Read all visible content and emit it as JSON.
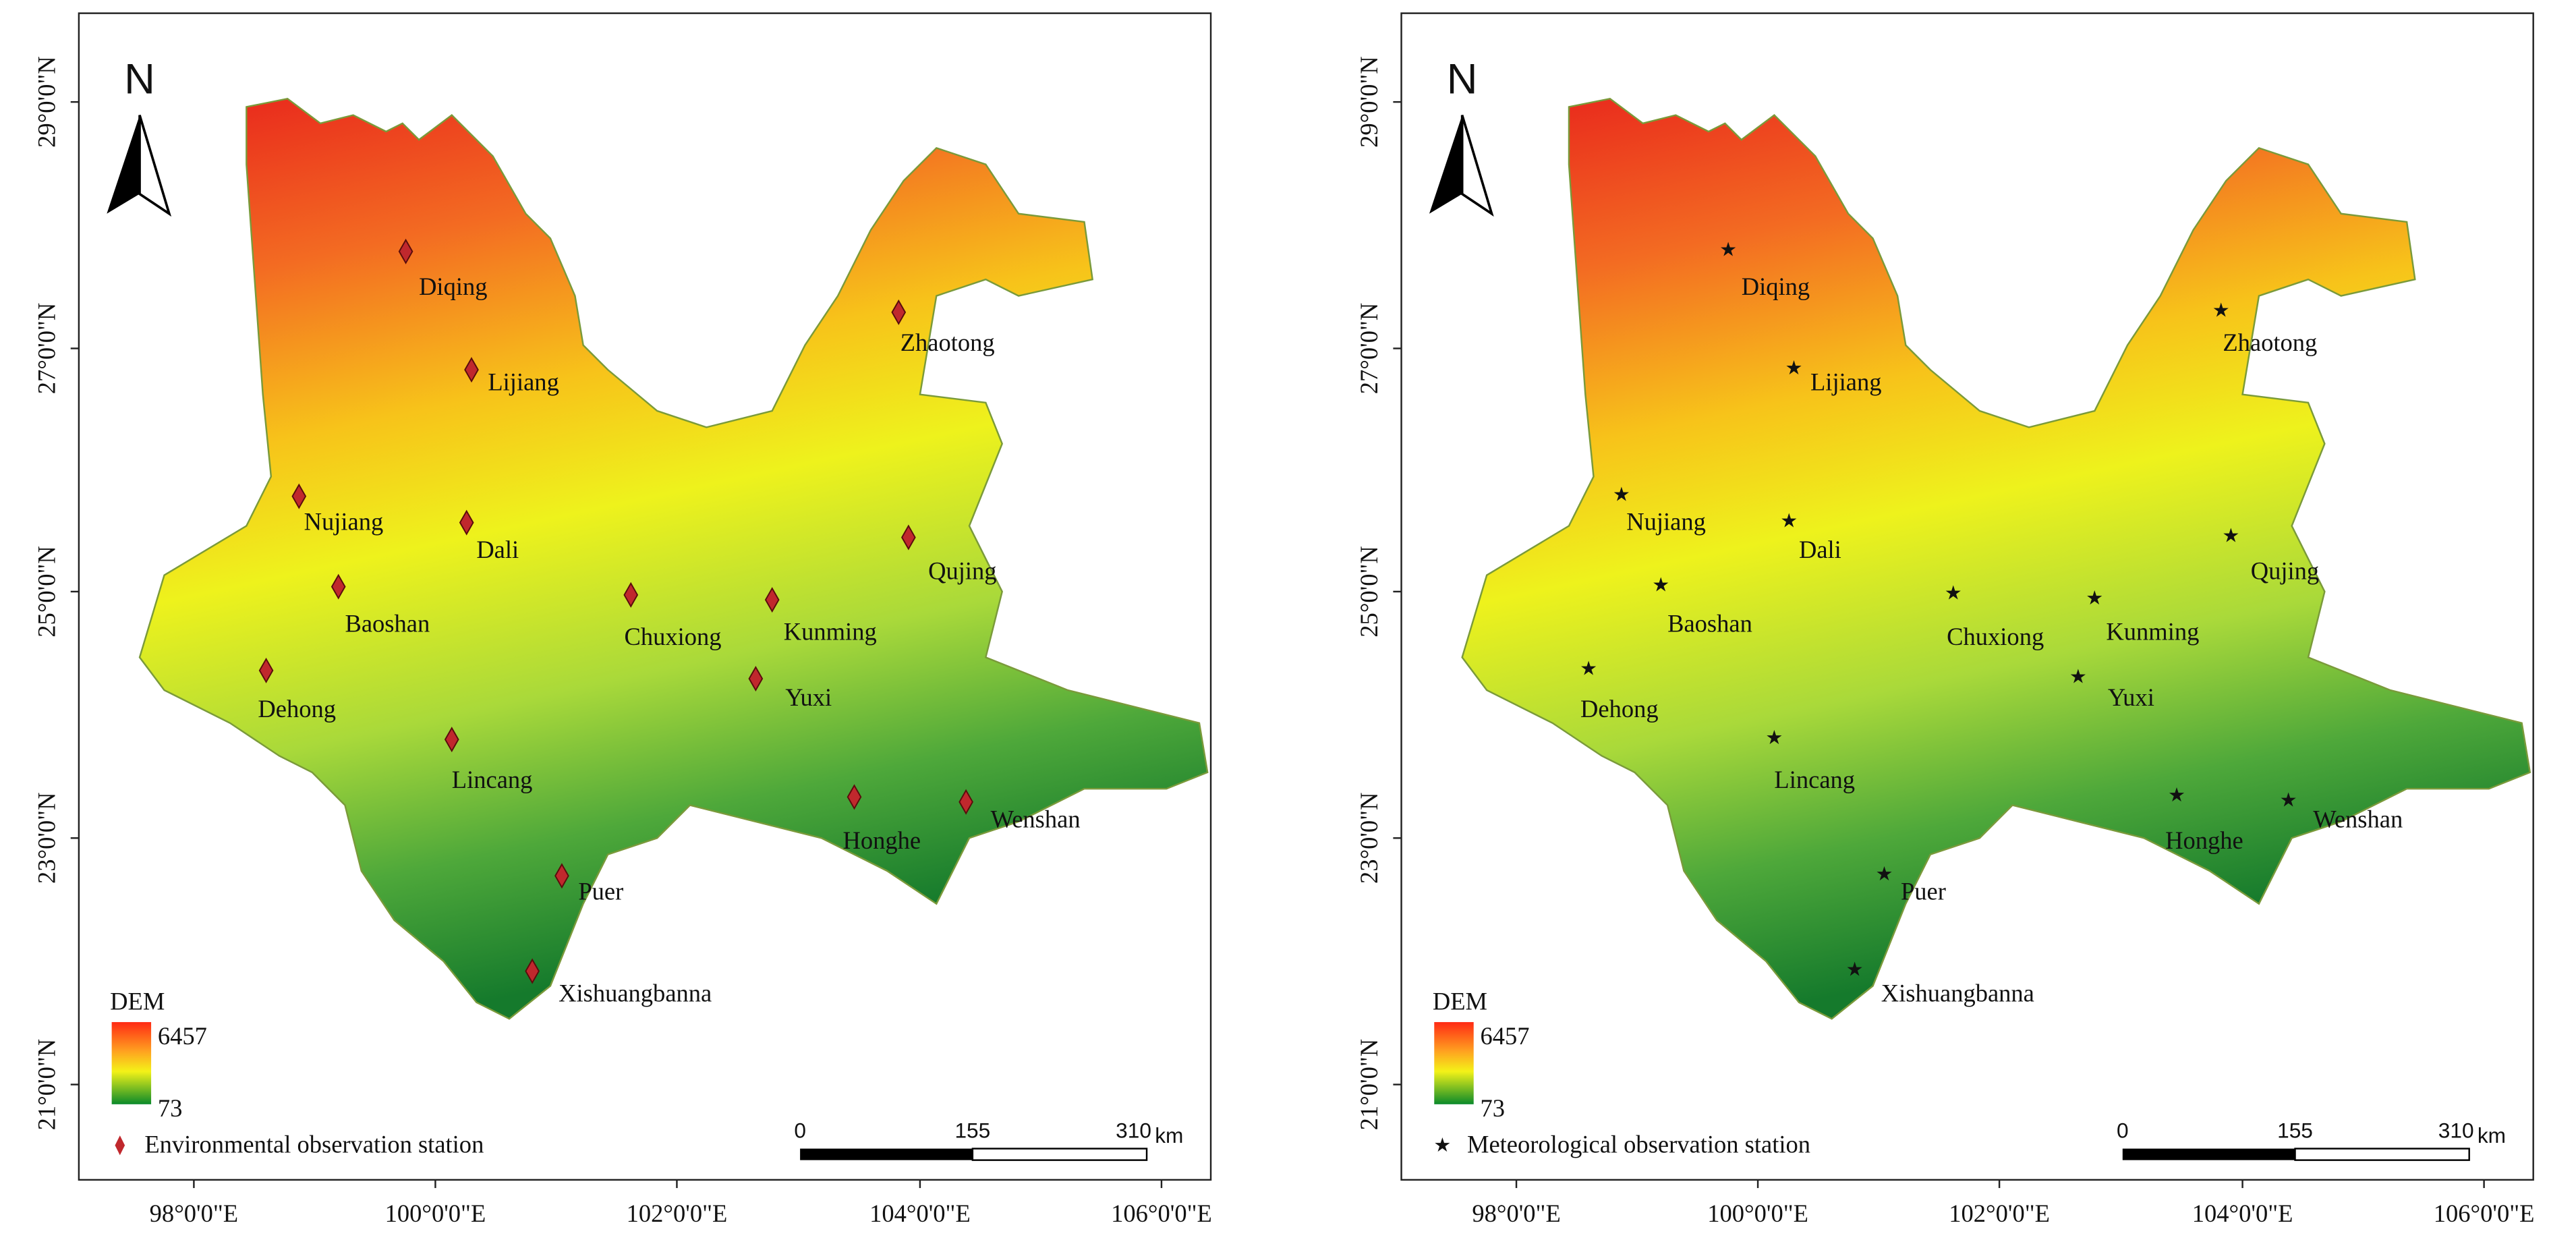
{
  "maps": [
    {
      "north": "N",
      "lat_labels": [
        "29°0'0\"N",
        "27°0'0\"N",
        "25°0'0\"N",
        "23°0'0\"N",
        "21°0'0\"N"
      ],
      "lon_labels": [
        "98°0'0\"E",
        "100°0'0\"E",
        "102°0'0\"E",
        "104°0'0\"E",
        "106°0'0\"E"
      ],
      "dem_legend": {
        "title": "DEM",
        "max": "6457",
        "min": "73"
      },
      "station_legend": "Environmental observation station",
      "scale_bar": {
        "ticks": [
          "0",
          "155",
          "310"
        ],
        "unit": "km"
      },
      "stations": [
        "Diqing",
        "Lijiang",
        "Nujiang",
        "Dali",
        "Baoshan",
        "Chuxiong",
        "Kunming",
        "Qujing",
        "Zhaotong",
        "Dehong",
        "Yuxi",
        "Lincang",
        "Honghe",
        "Wenshan",
        "Puer",
        "Xishuangbanna"
      ]
    },
    {
      "north": "N",
      "lat_labels": [
        "29°0'0\"N",
        "27°0'0\"N",
        "25°0'0\"N",
        "23°0'0\"N",
        "21°0'0\"N"
      ],
      "lon_labels": [
        "98°0'0\"E",
        "100°0'0\"E",
        "102°0'0\"E",
        "104°0'0\"E",
        "106°0'0\"E"
      ],
      "dem_legend": {
        "title": "DEM",
        "max": "6457",
        "min": "73"
      },
      "station_legend": "Meteorological observation station",
      "scale_bar": {
        "ticks": [
          "0",
          "155",
          "310"
        ],
        "unit": "km"
      },
      "stations": [
        "Diqing",
        "Lijiang",
        "Nujiang",
        "Dali",
        "Baoshan",
        "Chuxiong",
        "Kunming",
        "Qujing",
        "Zhaotong",
        "Dehong",
        "Yuxi",
        "Lincang",
        "Honghe",
        "Wenshan",
        "Puer",
        "Xishuangbanna"
      ]
    }
  ]
}
